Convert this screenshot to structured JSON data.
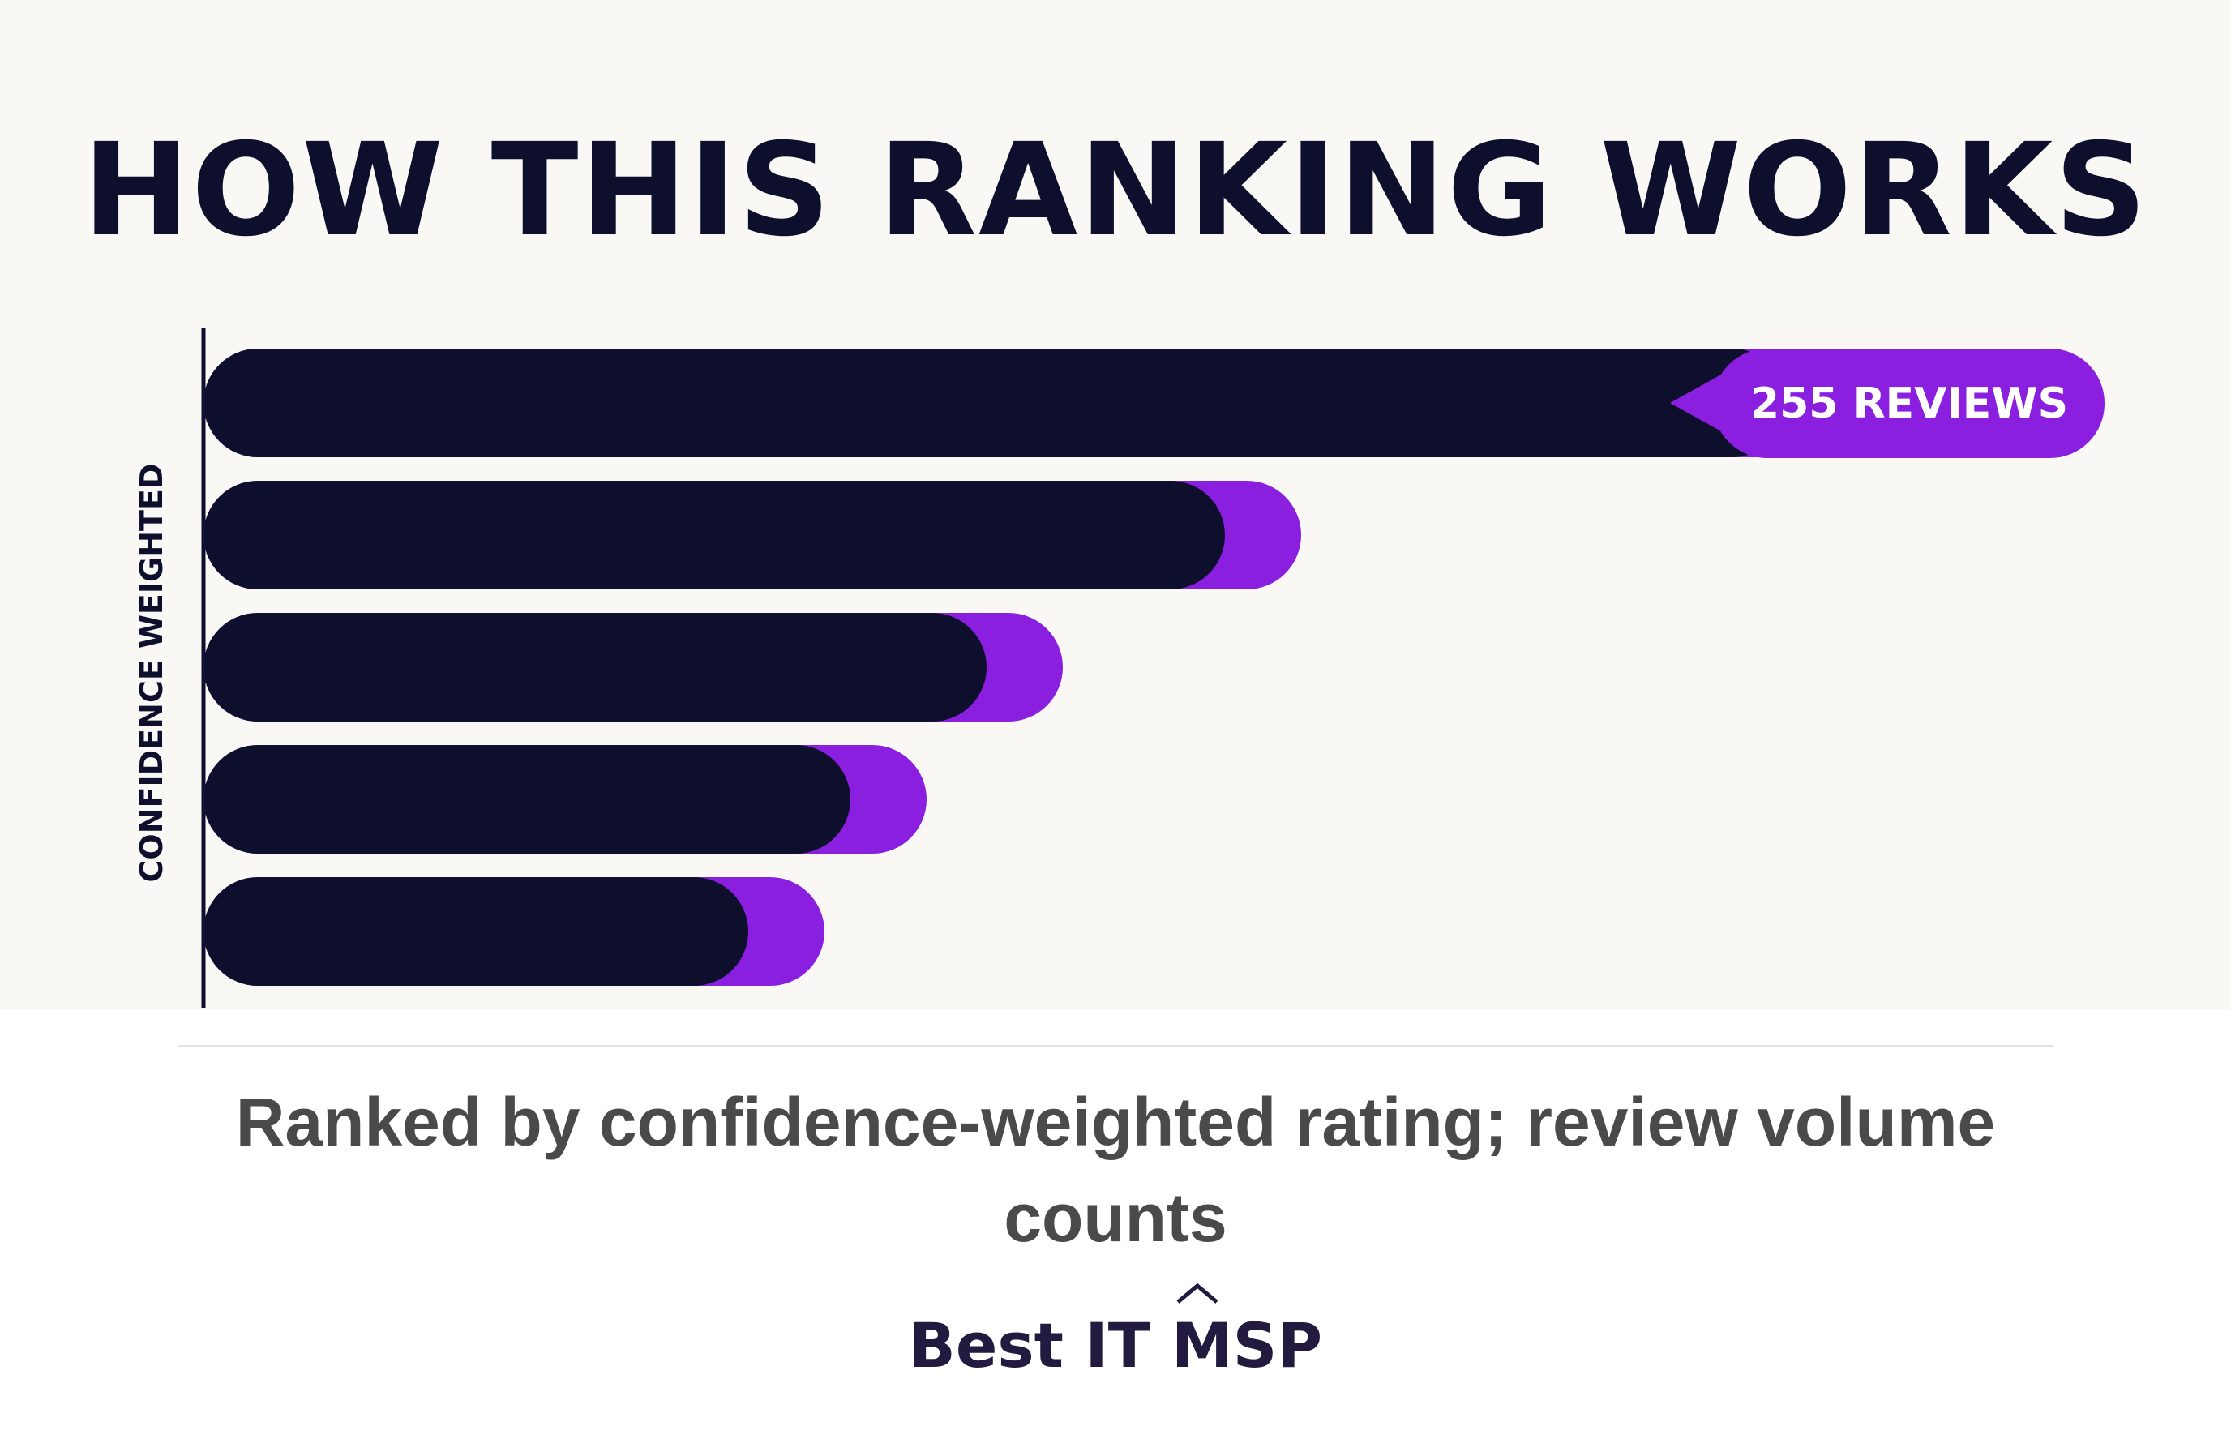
{
  "title": "HOW THIS RANKING WORKS",
  "chart_data": {
    "type": "bar",
    "orientation": "horizontal",
    "ylabel": "CONFIDENCE WEIGHTED",
    "series": [
      {
        "values": [
          0.93,
          0.6,
          0.46,
          0.38,
          0.32
        ]
      },
      {
        "values": [
          0.04,
          0.04,
          0.04,
          0.04,
          0.04
        ]
      }
    ],
    "colors": {
      "bar": "#0d0f2d",
      "accent": "#8a1fe0",
      "axis": "#0d0f2d"
    },
    "annotation": {
      "text": "255 REVIEWS",
      "bar_index": 0
    },
    "grid": false,
    "legend": "none"
  },
  "caption": "Ranked by confidence-weighted rating; review volume counts",
  "brand": {
    "text_before": "Best IT ",
    "text_mark": "MSP"
  }
}
